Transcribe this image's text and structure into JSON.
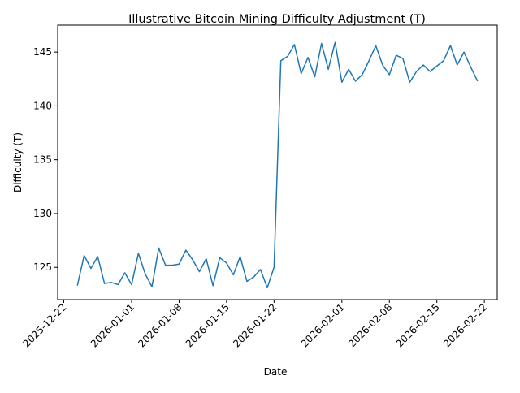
{
  "chart_data": {
    "type": "line",
    "title": "Illustrative Bitcoin Mining Difficulty Adjustment (T)",
    "xlabel": "Date",
    "ylabel": "Difficulty (T)",
    "xlim": [
      "2025-12-21",
      "2026-02-24"
    ],
    "ylim": [
      122.0,
      147.5
    ],
    "x_ticks": [
      "2025-12-22",
      "2026-01-01",
      "2026-01-08",
      "2026-01-15",
      "2026-01-22",
      "2026-02-01",
      "2026-02-08",
      "2026-02-15",
      "2026-02-22"
    ],
    "y_ticks": [
      125,
      130,
      135,
      140,
      145
    ],
    "grid": false,
    "line_color": "#1f77b4",
    "series": [
      {
        "start_date": "2025-12-24",
        "frequency": "daily",
        "values": [
          123.3,
          126.1,
          124.9,
          126.0,
          123.5,
          123.6,
          123.4,
          124.5,
          123.4,
          126.3,
          124.4,
          123.2,
          126.8,
          125.2,
          125.2,
          125.3,
          126.6,
          125.7,
          124.6,
          125.8,
          123.3,
          125.9,
          125.4,
          124.3,
          126.0,
          123.7,
          124.1,
          124.8,
          123.1,
          125.0,
          144.2,
          144.6,
          145.7,
          143.0,
          144.5,
          142.7,
          145.8,
          143.4,
          145.9,
          142.2,
          143.4,
          142.3,
          142.9,
          144.2,
          145.6,
          143.8,
          142.9,
          144.7,
          144.4,
          142.2,
          143.2,
          143.8,
          143.2,
          143.7,
          144.2,
          145.6,
          143.8,
          145.0,
          143.6,
          142.3
        ]
      }
    ]
  }
}
